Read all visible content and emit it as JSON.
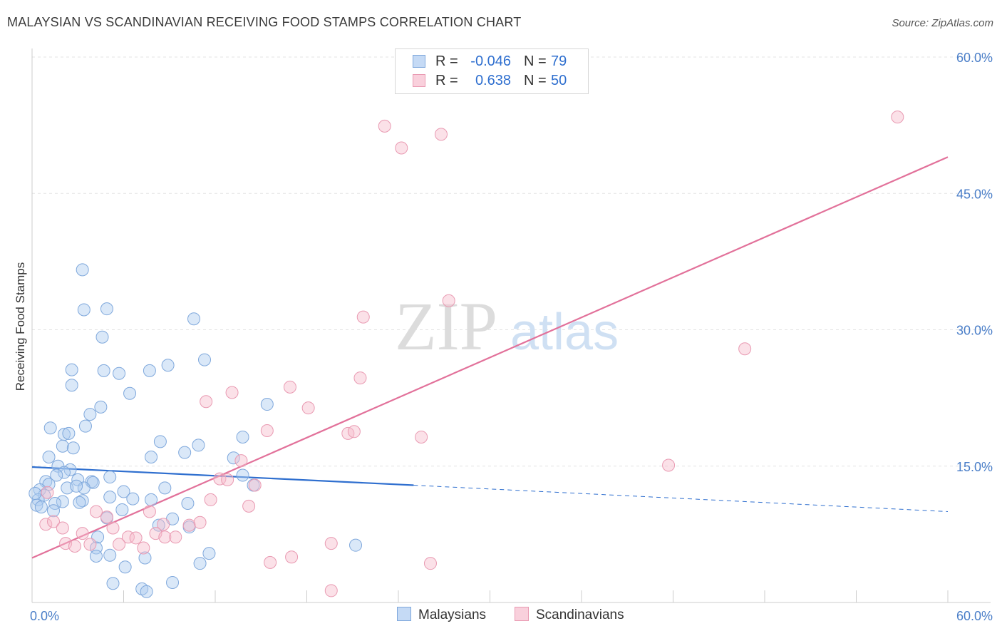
{
  "header": {
    "title": "MALAYSIAN VS SCANDINAVIAN RECEIVING FOOD STAMPS CORRELATION CHART",
    "source": "Source: ZipAtlas.com"
  },
  "legend": {
    "rows": [
      {
        "r_label": "R =",
        "r_value": "-0.046",
        "n_label": "N =",
        "n_value": "79",
        "color": "#aecbf0"
      },
      {
        "r_label": "R =",
        "r_value": "0.638",
        "n_label": "N =",
        "n_value": "50",
        "color": "#f6bccd"
      }
    ]
  },
  "bottom_legend": {
    "series_a": "Malaysians",
    "series_b": "Scandinavians"
  },
  "watermark": {
    "zip": "ZIP",
    "atlas": "atlas"
  },
  "chart_data": {
    "type": "scatter",
    "title": "MALAYSIAN VS SCANDINAVIAN RECEIVING FOOD STAMPS CORRELATION CHART",
    "ylabel": "Receiving Food Stamps",
    "xlabel": "",
    "xlim": [
      0,
      60
    ],
    "ylim": [
      0,
      60
    ],
    "x_tick_labels": [
      "0.0%",
      "60.0%"
    ],
    "y_ticks": [
      15,
      30,
      45,
      60
    ],
    "y_tick_labels": [
      "15.0%",
      "30.0%",
      "45.0%",
      "60.0%"
    ],
    "grid": true,
    "legend_position": "top-center",
    "series": [
      {
        "name": "Malaysians",
        "color": "#aecbf0",
        "edge": "#7fa8dc",
        "line_color": "#2f6fcf",
        "trend_solid": [
          [
            0,
            14.9
          ],
          [
            25,
            12.9
          ]
        ],
        "trend_dashed": [
          [
            25,
            12.9
          ],
          [
            60,
            10.0
          ]
        ],
        "points": [
          [
            3.3,
            36.6
          ],
          [
            3.4,
            32.2
          ],
          [
            4.9,
            32.3
          ],
          [
            10.6,
            31.2
          ],
          [
            4.6,
            29.2
          ],
          [
            2.6,
            25.6
          ],
          [
            4.7,
            25.5
          ],
          [
            5.7,
            25.2
          ],
          [
            7.7,
            25.5
          ],
          [
            8.9,
            26.1
          ],
          [
            11.3,
            26.7
          ],
          [
            2.6,
            23.9
          ],
          [
            6.4,
            23.0
          ],
          [
            4.5,
            21.5
          ],
          [
            3.8,
            20.7
          ],
          [
            15.4,
            21.8
          ],
          [
            1.2,
            19.2
          ],
          [
            3.5,
            19.4
          ],
          [
            2.1,
            18.5
          ],
          [
            2.4,
            18.6
          ],
          [
            13.8,
            18.2
          ],
          [
            8.4,
            17.7
          ],
          [
            10.9,
            17.3
          ],
          [
            2.0,
            17.2
          ],
          [
            2.7,
            17.0
          ],
          [
            10.0,
            16.5
          ],
          [
            1.1,
            16.0
          ],
          [
            7.8,
            16.0
          ],
          [
            13.2,
            15.9
          ],
          [
            1.7,
            15.0
          ],
          [
            2.5,
            14.6
          ],
          [
            2.1,
            14.3
          ],
          [
            1.6,
            14.0
          ],
          [
            5.1,
            13.8
          ],
          [
            13.8,
            14.0
          ],
          [
            0.9,
            13.3
          ],
          [
            3.0,
            13.5
          ],
          [
            3.9,
            13.3
          ],
          [
            1.1,
            13.0
          ],
          [
            4.0,
            13.2
          ],
          [
            2.3,
            12.6
          ],
          [
            3.4,
            12.6
          ],
          [
            8.7,
            12.6
          ],
          [
            6.0,
            12.2
          ],
          [
            0.5,
            12.4
          ],
          [
            0.8,
            11.8
          ],
          [
            5.1,
            11.6
          ],
          [
            6.6,
            11.4
          ],
          [
            7.8,
            11.3
          ],
          [
            3.3,
            11.2
          ],
          [
            2.0,
            11.1
          ],
          [
            3.1,
            11.0
          ],
          [
            1.5,
            10.9
          ],
          [
            0.4,
            11.3
          ],
          [
            0.3,
            10.7
          ],
          [
            10.2,
            10.9
          ],
          [
            14.5,
            12.9
          ],
          [
            1.4,
            10.1
          ],
          [
            5.9,
            10.2
          ],
          [
            4.9,
            9.3
          ],
          [
            9.2,
            9.2
          ],
          [
            8.3,
            8.5
          ],
          [
            10.3,
            8.3
          ],
          [
            4.3,
            7.2
          ],
          [
            4.2,
            6.0
          ],
          [
            5.1,
            5.2
          ],
          [
            7.4,
            4.9
          ],
          [
            4.2,
            5.1
          ],
          [
            11.6,
            5.4
          ],
          [
            21.2,
            6.3
          ],
          [
            6.1,
            3.9
          ],
          [
            11.0,
            4.3
          ],
          [
            5.3,
            2.1
          ],
          [
            9.2,
            2.2
          ],
          [
            7.2,
            1.5
          ],
          [
            7.5,
            1.2
          ],
          [
            0.2,
            12.0
          ],
          [
            2.9,
            12.8
          ],
          [
            0.6,
            10.5
          ]
        ]
      },
      {
        "name": "Scandinavians",
        "color": "#f6bccd",
        "edge": "#e99ab2",
        "line_color": "#e2719a",
        "trend_solid": [
          [
            0,
            4.9
          ],
          [
            60,
            49.0
          ]
        ],
        "points": [
          [
            1.0,
            12.1
          ],
          [
            56.7,
            53.4
          ],
          [
            23.1,
            52.4
          ],
          [
            26.8,
            51.5
          ],
          [
            24.2,
            50.0
          ],
          [
            27.3,
            33.2
          ],
          [
            21.7,
            31.4
          ],
          [
            46.7,
            27.9
          ],
          [
            21.5,
            24.7
          ],
          [
            13.1,
            23.1
          ],
          [
            16.9,
            23.7
          ],
          [
            11.4,
            22.1
          ],
          [
            18.1,
            21.4
          ],
          [
            15.4,
            18.9
          ],
          [
            20.7,
            18.6
          ],
          [
            21.1,
            18.8
          ],
          [
            25.5,
            18.2
          ],
          [
            41.7,
            15.1
          ],
          [
            13.7,
            15.6
          ],
          [
            12.3,
            13.6
          ],
          [
            12.8,
            13.5
          ],
          [
            14.6,
            12.9
          ],
          [
            11.7,
            11.3
          ],
          [
            14.2,
            10.6
          ],
          [
            7.7,
            10.0
          ],
          [
            4.2,
            10.0
          ],
          [
            0.9,
            8.6
          ],
          [
            1.4,
            8.9
          ],
          [
            4.9,
            9.4
          ],
          [
            8.6,
            8.6
          ],
          [
            10.3,
            8.5
          ],
          [
            11.0,
            8.8
          ],
          [
            2.0,
            8.2
          ],
          [
            5.3,
            8.2
          ],
          [
            3.3,
            7.6
          ],
          [
            8.1,
            7.6
          ],
          [
            8.7,
            7.2
          ],
          [
            9.4,
            7.2
          ],
          [
            6.3,
            7.2
          ],
          [
            6.8,
            7.1
          ],
          [
            5.7,
            6.4
          ],
          [
            7.3,
            6.0
          ],
          [
            2.2,
            6.5
          ],
          [
            3.8,
            6.4
          ],
          [
            2.8,
            6.2
          ],
          [
            19.6,
            6.5
          ],
          [
            17.0,
            5.0
          ],
          [
            15.6,
            4.4
          ],
          [
            26.1,
            4.3
          ],
          [
            19.6,
            1.3
          ]
        ]
      }
    ]
  }
}
